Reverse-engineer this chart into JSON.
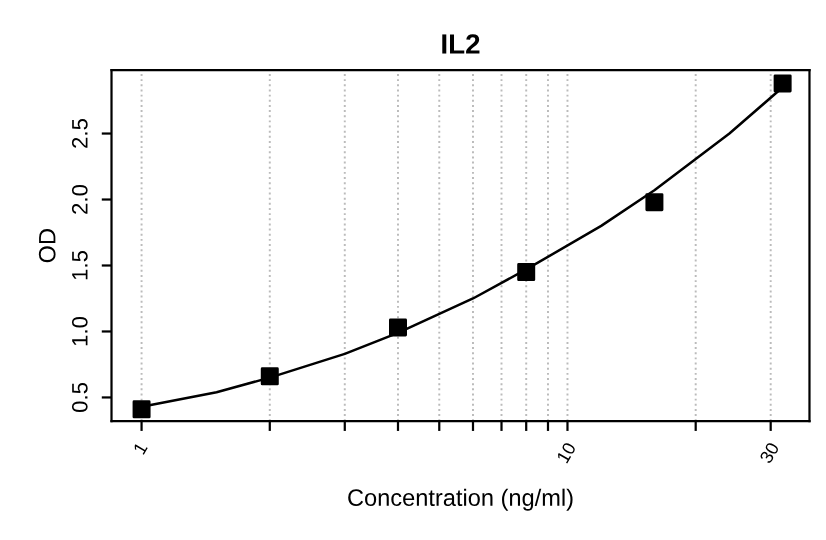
{
  "chart_data": {
    "type": "scatter",
    "title": "IL2",
    "xlabel": "Concentration (ng/ml)",
    "ylabel": "OD",
    "log": "x",
    "grid": "x",
    "marker": "square",
    "xlim": [
      0.85,
      37
    ],
    "ylim": [
      0.32,
      2.98
    ],
    "xticks": [
      1,
      {
        "value": 2,
        "label": null
      },
      {
        "value": 3,
        "label": null
      },
      {
        "value": 4,
        "label": null
      },
      {
        "value": 5,
        "label": null
      },
      {
        "value": 6,
        "label": null
      },
      {
        "value": 7,
        "label": null
      },
      {
        "value": 8,
        "label": null
      },
      {
        "value": 9,
        "label": null
      },
      10,
      {
        "value": 20,
        "label": null
      },
      30
    ],
    "yticks": [
      0.5,
      {
        "value": 1,
        "label": "1.0"
      },
      1.5,
      {
        "value": 2,
        "label": "2.0"
      },
      2.5
    ],
    "series": [
      {
        "color": "#000000",
        "x": [
          1,
          2,
          4,
          8,
          16,
          32
        ],
        "values": [
          0.41,
          0.66,
          1.03,
          1.45,
          1.98,
          2.88
        ]
      },
      {
        "type": "line",
        "color": "#000000",
        "line_style": "solid",
        "marker": "none",
        "x": [
          1,
          1.5,
          2,
          3,
          4,
          6,
          8,
          12,
          16,
          24,
          32
        ],
        "values": [
          0.43,
          0.54,
          0.65,
          0.83,
          0.99,
          1.25,
          1.47,
          1.8,
          2.07,
          2.5,
          2.85
        ]
      }
    ]
  }
}
